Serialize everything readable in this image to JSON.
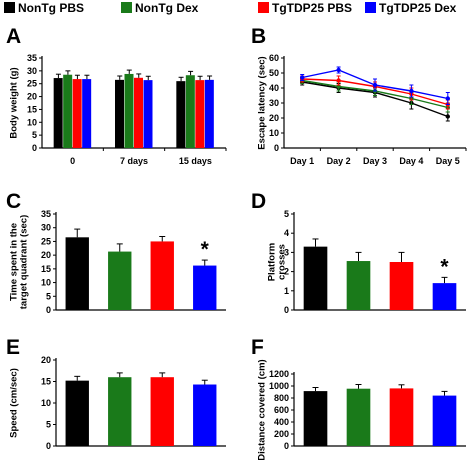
{
  "legend": [
    {
      "name": "NonTg PBS",
      "color": "#000000"
    },
    {
      "name": "NonTg Dex",
      "color": "#1a7a1a"
    },
    {
      "name": "TgTDP25 PBS",
      "color": "#ff0000"
    },
    {
      "name": "TgTDP25 Dex",
      "color": "#0000ff"
    }
  ],
  "chart_data": [
    {
      "panel": "A",
      "type": "bar",
      "ylabel": "Body weight (g)",
      "categories": [
        "0",
        "7 days",
        "15 days"
      ],
      "ylim": [
        0,
        35
      ],
      "yticks": [
        0,
        5,
        10,
        15,
        20,
        25,
        30,
        35
      ],
      "series": [
        {
          "name": "NonTg PBS",
          "values": [
            27.2,
            26.5,
            26.0
          ],
          "errors": [
            1.5,
            1.5,
            1.5
          ]
        },
        {
          "name": "NonTg Dex",
          "values": [
            28.5,
            28.8,
            28.3
          ],
          "errors": [
            1.5,
            1.5,
            1.5
          ]
        },
        {
          "name": "TgTDP25 PBS",
          "values": [
            26.8,
            27.3,
            26.4
          ],
          "errors": [
            1.5,
            1.5,
            1.5
          ]
        },
        {
          "name": "TgTDP25 Dex",
          "values": [
            26.8,
            26.4,
            26.5
          ],
          "errors": [
            1.5,
            1.5,
            1.5
          ]
        }
      ]
    },
    {
      "panel": "B",
      "type": "line",
      "ylabel": "Escape latency (sec)",
      "categories": [
        "Day 1",
        "Day 2",
        "Day 3",
        "Day 4",
        "Day 5"
      ],
      "ylim": [
        0,
        60
      ],
      "yticks": [
        0,
        10,
        20,
        30,
        40,
        50,
        60
      ],
      "series": [
        {
          "name": "NonTg PBS",
          "values": [
            44,
            40,
            37,
            30,
            21
          ],
          "errors": [
            2,
            3,
            3,
            4,
            3
          ]
        },
        {
          "name": "NonTg Dex",
          "values": [
            45,
            41,
            38,
            33,
            27
          ],
          "errors": [
            2,
            3,
            3,
            4,
            3
          ]
        },
        {
          "name": "TgTDP25 PBS",
          "values": [
            46,
            45,
            41,
            36,
            29
          ],
          "errors": [
            2,
            3,
            3,
            4,
            3
          ]
        },
        {
          "name": "TgTDP25 Dex",
          "values": [
            47,
            52,
            42,
            38,
            33
          ],
          "errors": [
            2,
            2,
            4,
            4,
            4
          ]
        }
      ]
    },
    {
      "panel": "C",
      "type": "bar",
      "ylabel": [
        "Time spent in the",
        "target quadrant (sec)"
      ],
      "ylim": [
        0,
        35
      ],
      "yticks": [
        0,
        5,
        10,
        15,
        20,
        25,
        30,
        35
      ],
      "series": [
        {
          "name": "NonTg PBS",
          "values": [
            26.5
          ],
          "errors": [
            3
          ]
        },
        {
          "name": "NonTg Dex",
          "values": [
            21.3
          ],
          "errors": [
            2.8
          ]
        },
        {
          "name": "TgTDP25 PBS",
          "values": [
            25.0
          ],
          "errors": [
            1.8
          ]
        },
        {
          "name": "TgTDP25 Dex",
          "values": [
            16.2
          ],
          "errors": [
            2
          ]
        }
      ],
      "annotation": {
        "text": "*",
        "series": 3
      }
    },
    {
      "panel": "D",
      "type": "bar",
      "ylabel": [
        "Platform",
        "crosses"
      ],
      "ylim": [
        0,
        5
      ],
      "yticks": [
        0,
        1,
        2,
        3,
        4,
        5
      ],
      "series": [
        {
          "name": "NonTg PBS",
          "values": [
            3.3
          ],
          "errors": [
            0.4
          ]
        },
        {
          "name": "NonTg Dex",
          "values": [
            2.55
          ],
          "errors": [
            0.45
          ]
        },
        {
          "name": "TgTDP25 PBS",
          "values": [
            2.5
          ],
          "errors": [
            0.5
          ]
        },
        {
          "name": "TgTDP25 Dex",
          "values": [
            1.4
          ],
          "errors": [
            0.3
          ]
        }
      ],
      "annotation": {
        "text": "*",
        "series": 3
      }
    },
    {
      "panel": "E",
      "type": "bar",
      "ylabel": "Speed (cm/sec)",
      "ylim": [
        0,
        20
      ],
      "yticks": [
        0,
        5,
        10,
        15,
        20
      ],
      "series": [
        {
          "name": "NonTg PBS",
          "values": [
            15.2
          ],
          "errors": [
            1
          ]
        },
        {
          "name": "NonTg Dex",
          "values": [
            16.0
          ],
          "errors": [
            1
          ]
        },
        {
          "name": "TgTDP25 PBS",
          "values": [
            16.0
          ],
          "errors": [
            1
          ]
        },
        {
          "name": "TgTDP25 Dex",
          "values": [
            14.3
          ],
          "errors": [
            1
          ]
        }
      ]
    },
    {
      "panel": "F",
      "type": "bar",
      "ylabel": "Distance covered (cm)",
      "ylim": [
        0,
        1200
      ],
      "yticks": [
        0,
        200,
        400,
        600,
        800,
        1000,
        1200
      ],
      "series": [
        {
          "name": "NonTg PBS",
          "values": [
            915
          ],
          "errors": [
            60
          ]
        },
        {
          "name": "NonTg Dex",
          "values": [
            955
          ],
          "errors": [
            70
          ]
        },
        {
          "name": "TgTDP25 PBS",
          "values": [
            960
          ],
          "errors": [
            60
          ]
        },
        {
          "name": "TgTDP25 Dex",
          "values": [
            840
          ],
          "errors": [
            70
          ]
        }
      ]
    }
  ]
}
